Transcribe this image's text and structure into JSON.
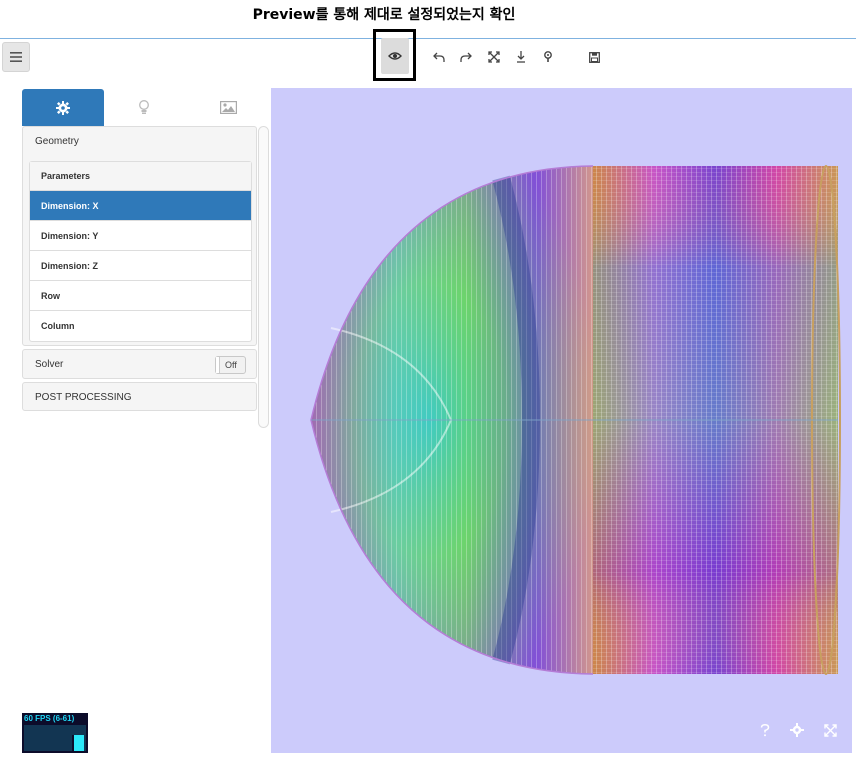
{
  "annotation": {
    "text": "Preview를 통해 제대로 설정되었는지 확인"
  },
  "toolbar": {
    "menu_icon": "hamburger-menu-icon",
    "buttons": [
      "preview-eye-icon",
      "undo-icon",
      "redo-icon",
      "fit-expand-icon",
      "download-icon",
      "hint-icon",
      "save-icon"
    ]
  },
  "tabs": [
    {
      "icon": "gear-icon",
      "active": true
    },
    {
      "icon": "lightbulb-icon",
      "active": false
    },
    {
      "icon": "image-icon",
      "active": false
    }
  ],
  "geometry": {
    "title": "Geometry",
    "list_header": "Parameters",
    "items": [
      "Dimension: X",
      "Dimension: Y",
      "Dimension: Z",
      "Row",
      "Column"
    ],
    "selected": "Dimension: X"
  },
  "solver": {
    "title": "Solver",
    "toggle_label": "Off"
  },
  "post_processing": {
    "title": "POST PROCESSING"
  },
  "fps_meter": {
    "label": "60 FPS (6-61)"
  },
  "viewport": {
    "background": "#cccbfb",
    "corner_icons": [
      "help-icon",
      "settings-icon",
      "fullscreen-icon"
    ]
  },
  "colors": {
    "accent": "#2f79b9",
    "highlight_border": "#000000"
  }
}
